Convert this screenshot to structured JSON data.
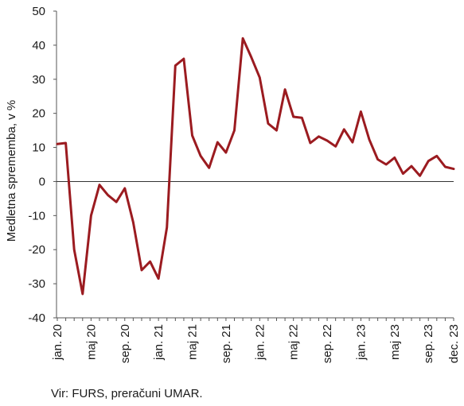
{
  "chart_data": {
    "type": "line",
    "ylabel": "Medletna sprememba, v %",
    "ylim": [
      -40,
      50
    ],
    "yticks": [
      50,
      40,
      30,
      20,
      10,
      0,
      -10,
      -20,
      -30,
      -40
    ],
    "xtick_labels": [
      "jan. 20",
      "maj 20",
      "sep. 20",
      "jan. 21",
      "maj 21",
      "sep. 21",
      "jan. 22",
      "maj 22",
      "sep. 22",
      "jan. 23",
      "maj 23",
      "sep. 23",
      "dec. 23"
    ],
    "xtick_indices": [
      0,
      4,
      8,
      12,
      16,
      20,
      24,
      28,
      32,
      36,
      40,
      44,
      47
    ],
    "grid": false,
    "zero_line": true,
    "line_color": "#9b1b20",
    "x": [
      "jan. 20",
      "feb. 20",
      "mar. 20",
      "apr. 20",
      "maj 20",
      "jun. 20",
      "jul. 20",
      "avg. 20",
      "sep. 20",
      "okt. 20",
      "nov. 20",
      "dec. 20",
      "jan. 21",
      "feb. 21",
      "mar. 21",
      "apr. 21",
      "maj 21",
      "jun. 21",
      "jul. 21",
      "avg. 21",
      "sep. 21",
      "okt. 21",
      "nov. 21",
      "dec. 21",
      "jan. 22",
      "feb. 22",
      "mar. 22",
      "apr. 22",
      "maj 22",
      "jun. 22",
      "jul. 22",
      "avg. 22",
      "sep. 22",
      "okt. 22",
      "nov. 22",
      "dec. 22",
      "jan. 23",
      "feb. 23",
      "mar. 23",
      "apr. 23",
      "maj 23",
      "jun. 23",
      "jul. 23",
      "avg. 23",
      "sep. 23",
      "okt. 23",
      "nov. 23",
      "dec. 23"
    ],
    "values": [
      11,
      11.3,
      -20,
      -33,
      -10,
      -1,
      -4,
      -6,
      -2,
      -12,
      -26,
      -23.5,
      -28.5,
      -13.5,
      34,
      36,
      13.5,
      7.5,
      4,
      11.5,
      8.5,
      15,
      42,
      36.5,
      30.5,
      17,
      15,
      27,
      19,
      18.7,
      11.3,
      13.2,
      12,
      10.3,
      15.3,
      11.5,
      20.5,
      12.3,
      6.5,
      5,
      7,
      2.3,
      4.5,
      1.7,
      6,
      7.5,
      4.3,
      3.7
    ]
  },
  "source": "Vir: FURS, preračuni UMAR."
}
